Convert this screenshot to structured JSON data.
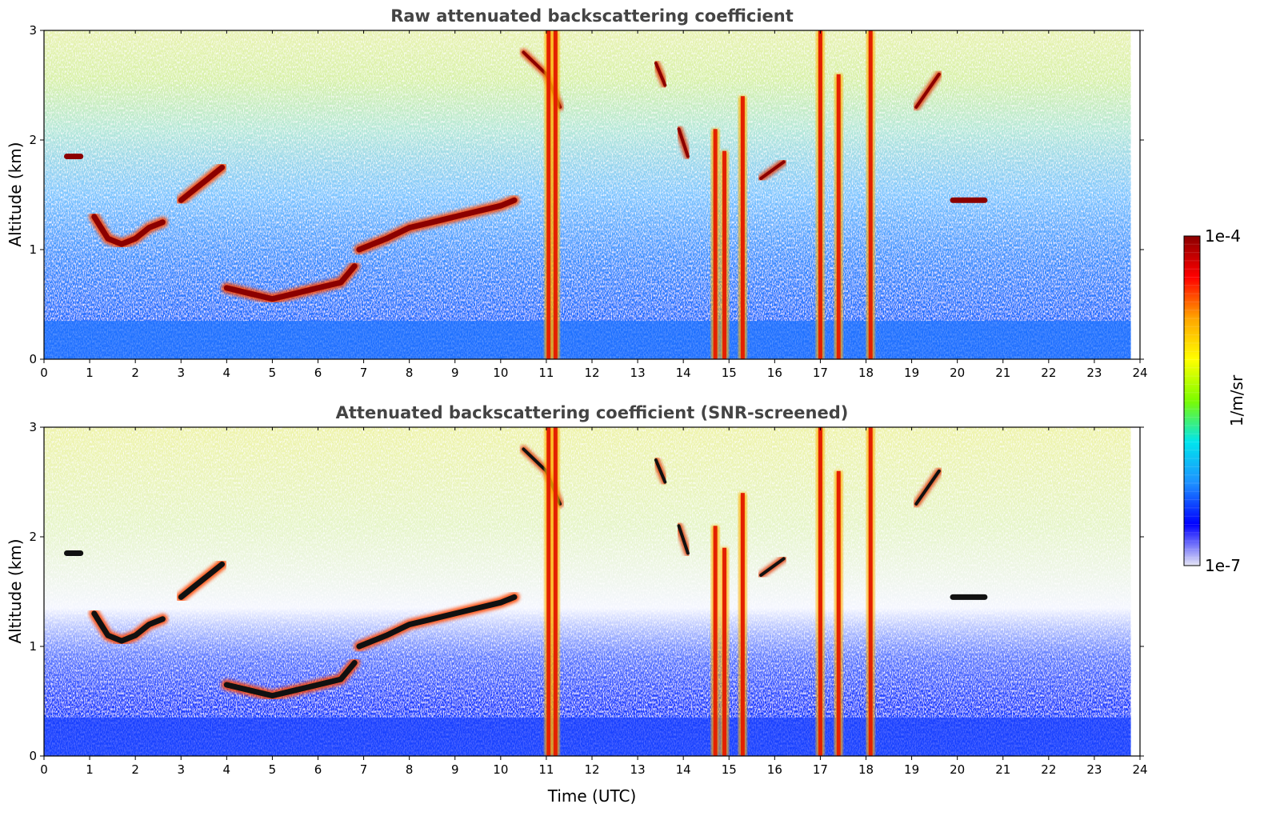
{
  "chart_data": [
    {
      "type": "heatmap",
      "title": "Raw attenuated backscattering coefficient",
      "xlabel": "",
      "ylabel": "Altitude (km)",
      "xlim": [
        0,
        24
      ],
      "ylim": [
        0,
        3
      ],
      "xticks": [
        "0",
        "1",
        "2",
        "3",
        "4",
        "5",
        "6",
        "7",
        "8",
        "9",
        "10",
        "11",
        "12",
        "13",
        "14",
        "15",
        "16",
        "17",
        "18",
        "19",
        "20",
        "21",
        "22",
        "23",
        "24"
      ],
      "yticks": [
        "0",
        "1",
        "2",
        "3"
      ],
      "screening": "none",
      "layers": [
        {
          "t": [
            0.5,
            0.8
          ],
          "z": [
            1.85,
            1.85
          ]
        },
        {
          "t": [
            1.1,
            1.4,
            1.7,
            2.0,
            2.3,
            2.6
          ],
          "z": [
            1.3,
            1.1,
            1.05,
            1.1,
            1.2,
            1.25
          ]
        },
        {
          "t": [
            3.0,
            3.3,
            3.6,
            3.9
          ],
          "z": [
            1.45,
            1.55,
            1.65,
            1.75
          ]
        },
        {
          "t": [
            4.0,
            4.5,
            5.0,
            5.5,
            6.0,
            6.5,
            6.8
          ],
          "z": [
            0.65,
            0.6,
            0.55,
            0.6,
            0.65,
            0.7,
            0.85
          ]
        },
        {
          "t": [
            6.9,
            7.5,
            8.0,
            8.5,
            9.0,
            9.5,
            10.0,
            10.3
          ],
          "z": [
            1.0,
            1.1,
            1.2,
            1.25,
            1.3,
            1.35,
            1.4,
            1.45
          ]
        },
        {
          "t": [
            19.9,
            20.6
          ],
          "z": [
            1.45,
            1.45
          ]
        }
      ],
      "plumes": [
        {
          "t": 11.05,
          "z_top": 3.0
        },
        {
          "t": 11.2,
          "z_top": 3.0
        },
        {
          "t": 14.7,
          "z_top": 2.1
        },
        {
          "t": 14.9,
          "z_top": 1.9
        },
        {
          "t": 15.3,
          "z_top": 2.4
        },
        {
          "t": 17.0,
          "z_top": 3.0
        },
        {
          "t": 17.4,
          "z_top": 2.6
        },
        {
          "t": 18.1,
          "z_top": 3.0
        }
      ],
      "cirrus": [
        {
          "t": [
            10.5,
            11.0,
            11.3
          ],
          "z": [
            2.8,
            2.6,
            2.3
          ]
        },
        {
          "t": [
            13.4,
            13.6
          ],
          "z": [
            2.7,
            2.5
          ]
        },
        {
          "t": [
            13.9,
            14.1
          ],
          "z": [
            2.1,
            1.85
          ]
        },
        {
          "t": [
            15.7,
            16.2
          ],
          "z": [
            1.65,
            1.8
          ]
        },
        {
          "t": [
            19.1,
            19.6
          ],
          "z": [
            2.3,
            2.6
          ]
        }
      ]
    },
    {
      "type": "heatmap",
      "title": "Attenuated backscattering coefficient (SNR-screened)",
      "xlabel": "Time (UTC)",
      "ylabel": "Altitude (km)",
      "xlim": [
        0,
        24
      ],
      "ylim": [
        0,
        3
      ],
      "xticks": [
        "0",
        "1",
        "2",
        "3",
        "4",
        "5",
        "6",
        "7",
        "8",
        "9",
        "10",
        "11",
        "12",
        "13",
        "14",
        "15",
        "16",
        "17",
        "18",
        "19",
        "20",
        "21",
        "22",
        "23",
        "24"
      ],
      "yticks": [
        "0",
        "1",
        "2",
        "3"
      ],
      "screening": "SNR",
      "layers": [
        {
          "t": [
            0.5,
            0.8
          ],
          "z": [
            1.85,
            1.85
          ]
        },
        {
          "t": [
            1.1,
            1.4,
            1.7,
            2.0,
            2.3,
            2.6
          ],
          "z": [
            1.3,
            1.1,
            1.05,
            1.1,
            1.2,
            1.25
          ]
        },
        {
          "t": [
            3.0,
            3.3,
            3.6,
            3.9
          ],
          "z": [
            1.45,
            1.55,
            1.65,
            1.75
          ]
        },
        {
          "t": [
            4.0,
            4.5,
            5.0,
            5.5,
            6.0,
            6.5,
            6.8
          ],
          "z": [
            0.65,
            0.6,
            0.55,
            0.6,
            0.65,
            0.7,
            0.85
          ]
        },
        {
          "t": [
            6.9,
            7.5,
            8.0,
            8.5,
            9.0,
            9.5,
            10.0,
            10.3
          ],
          "z": [
            1.0,
            1.1,
            1.2,
            1.25,
            1.3,
            1.35,
            1.4,
            1.45
          ]
        },
        {
          "t": [
            19.9,
            20.6
          ],
          "z": [
            1.45,
            1.45
          ]
        }
      ],
      "plumes": [
        {
          "t": 11.05,
          "z_top": 3.0
        },
        {
          "t": 11.2,
          "z_top": 3.0
        },
        {
          "t": 14.7,
          "z_top": 2.1
        },
        {
          "t": 14.9,
          "z_top": 1.9
        },
        {
          "t": 15.3,
          "z_top": 2.4
        },
        {
          "t": 17.0,
          "z_top": 3.0
        },
        {
          "t": 17.4,
          "z_top": 2.6
        },
        {
          "t": 18.1,
          "z_top": 3.0
        }
      ],
      "cirrus": [
        {
          "t": [
            10.5,
            11.0,
            11.3
          ],
          "z": [
            2.8,
            2.6,
            2.3
          ]
        },
        {
          "t": [
            13.4,
            13.6
          ],
          "z": [
            2.7,
            2.5
          ]
        },
        {
          "t": [
            13.9,
            14.1
          ],
          "z": [
            2.1,
            1.85
          ]
        },
        {
          "t": [
            15.7,
            16.2
          ],
          "z": [
            1.65,
            1.8
          ]
        },
        {
          "t": [
            19.1,
            19.6
          ],
          "z": [
            2.3,
            2.6
          ]
        }
      ]
    }
  ],
  "colorbar": {
    "label": "1/m/sr",
    "max_label": "1e-4",
    "min_label": "1e-7",
    "scale": "log",
    "range": [
      1e-07,
      0.0001
    ],
    "colormap": [
      "#e6e6f5",
      "#0000ff",
      "#1e90ff",
      "#00e5ee",
      "#7cfc00",
      "#ffff00",
      "#ffa500",
      "#ff0000",
      "#8b0000"
    ]
  }
}
